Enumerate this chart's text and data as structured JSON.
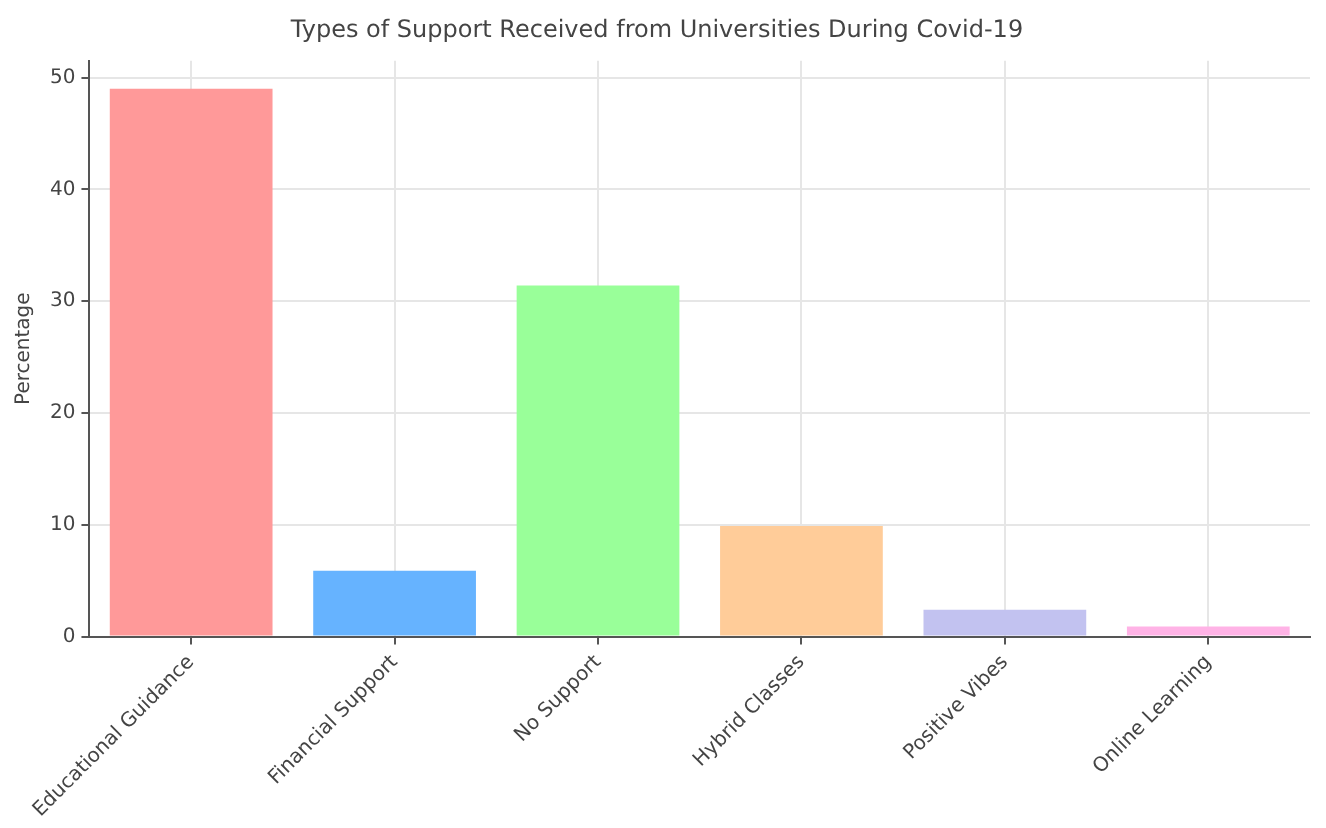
{
  "chart_data": {
    "type": "bar",
    "title": "Types of Support Received from Universities During Covid-19",
    "ylabel": "Percentage",
    "categories": [
      "Educational Guidance",
      "Financial Support",
      "No Support",
      "Hybrid Classes",
      "Positive Vibes",
      "Online Learning"
    ],
    "values": [
      49,
      5.9,
      31.4,
      9.9,
      2.4,
      0.9
    ],
    "colors": [
      "#ff9999",
      "#66b3ff",
      "#99ff99",
      "#ffcc99",
      "#c2c2f0",
      "#ffb3e6"
    ],
    "ylim": [
      0,
      51.5
    ],
    "yticks": [
      0,
      10,
      20,
      30,
      40,
      50
    ],
    "grid": true,
    "legend": false
  }
}
